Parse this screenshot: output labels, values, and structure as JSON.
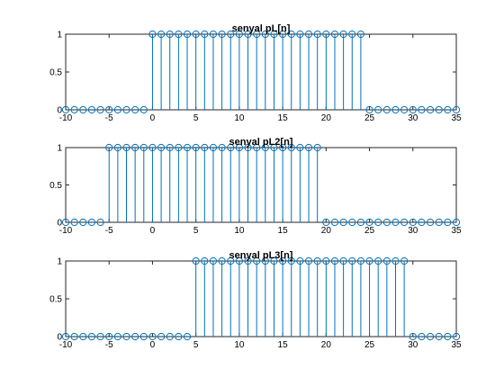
{
  "figure": {
    "background": "#ffffff",
    "axes_background": "#ffffff",
    "axis_color": "#262626",
    "stem_color": "#0072BD"
  },
  "chart_data": [
    {
      "type": "stem",
      "title": "senyal pL[n]",
      "xlabel": "",
      "ylabel": "",
      "xlim": [
        -10,
        35
      ],
      "ylim": [
        0,
        1
      ],
      "xticks": [
        -10,
        -5,
        0,
        5,
        10,
        15,
        20,
        25,
        30,
        35
      ],
      "xtick_labels": [
        "-10",
        "-5",
        "0",
        "5",
        "10",
        "15",
        "20",
        "25",
        "30",
        "35"
      ],
      "yticks": [
        0,
        0.5,
        1
      ],
      "ytick_labels": [
        "0",
        "0.5",
        "1"
      ],
      "grid": false,
      "n": [
        -10,
        -9,
        -8,
        -7,
        -6,
        -5,
        -4,
        -3,
        -2,
        -1,
        0,
        1,
        2,
        3,
        4,
        5,
        6,
        7,
        8,
        9,
        10,
        11,
        12,
        13,
        14,
        15,
        16,
        17,
        18,
        19,
        20,
        21,
        22,
        23,
        24,
        25,
        26,
        27,
        28,
        29,
        30,
        31,
        32,
        33,
        34,
        35
      ],
      "values": [
        0,
        0,
        0,
        0,
        0,
        0,
        0,
        0,
        0,
        0,
        1,
        1,
        1,
        1,
        1,
        1,
        1,
        1,
        1,
        1,
        1,
        1,
        1,
        1,
        1,
        1,
        1,
        1,
        1,
        1,
        1,
        1,
        1,
        1,
        1,
        0,
        0,
        0,
        0,
        0,
        0,
        0,
        0,
        0,
        0,
        0
      ]
    },
    {
      "type": "stem",
      "title": "senyal pL2[n]",
      "xlabel": "",
      "ylabel": "",
      "xlim": [
        -10,
        35
      ],
      "ylim": [
        0,
        1
      ],
      "xticks": [
        -10,
        -5,
        0,
        5,
        10,
        15,
        20,
        25,
        30,
        35
      ],
      "xtick_labels": [
        "-10",
        "-5",
        "0",
        "5",
        "10",
        "15",
        "20",
        "25",
        "30",
        "35"
      ],
      "yticks": [
        0,
        0.5,
        1
      ],
      "ytick_labels": [
        "0",
        "0.5",
        "1"
      ],
      "grid": false,
      "n": [
        -10,
        -9,
        -8,
        -7,
        -6,
        -5,
        -4,
        -3,
        -2,
        -1,
        0,
        1,
        2,
        3,
        4,
        5,
        6,
        7,
        8,
        9,
        10,
        11,
        12,
        13,
        14,
        15,
        16,
        17,
        18,
        19,
        20,
        21,
        22,
        23,
        24,
        25,
        26,
        27,
        28,
        29,
        30,
        31,
        32,
        33,
        34,
        35
      ],
      "values": [
        0,
        0,
        0,
        0,
        0,
        1,
        1,
        1,
        1,
        1,
        1,
        1,
        1,
        1,
        1,
        1,
        1,
        1,
        1,
        1,
        1,
        1,
        1,
        1,
        1,
        1,
        1,
        1,
        1,
        1,
        0,
        0,
        0,
        0,
        0,
        0,
        0,
        0,
        0,
        0,
        0,
        0,
        0,
        0,
        0,
        0
      ]
    },
    {
      "type": "stem",
      "title": "senyal pL3[n]",
      "xlabel": "",
      "ylabel": "",
      "xlim": [
        -10,
        35
      ],
      "ylim": [
        0,
        1
      ],
      "xticks": [
        -10,
        -5,
        0,
        5,
        10,
        15,
        20,
        25,
        30,
        35
      ],
      "xtick_labels": [
        "-10",
        "-5",
        "0",
        "5",
        "10",
        "15",
        "20",
        "25",
        "30",
        "35"
      ],
      "yticks": [
        0,
        0.5,
        1
      ],
      "ytick_labels": [
        "0",
        "0.5",
        "1"
      ],
      "grid": false,
      "n": [
        -10,
        -9,
        -8,
        -7,
        -6,
        -5,
        -4,
        -3,
        -2,
        -1,
        0,
        1,
        2,
        3,
        4,
        5,
        6,
        7,
        8,
        9,
        10,
        11,
        12,
        13,
        14,
        15,
        16,
        17,
        18,
        19,
        20,
        21,
        22,
        23,
        24,
        25,
        26,
        27,
        28,
        29,
        30,
        31,
        32,
        33,
        34,
        35
      ],
      "values": [
        0,
        0,
        0,
        0,
        0,
        0,
        0,
        0,
        0,
        0,
        0,
        0,
        0,
        0,
        0,
        1,
        1,
        1,
        1,
        1,
        1,
        1,
        1,
        1,
        1,
        1,
        1,
        1,
        1,
        1,
        1,
        1,
        1,
        1,
        1,
        1,
        1,
        1,
        1,
        1,
        0,
        0,
        0,
        0,
        0,
        0
      ]
    }
  ]
}
